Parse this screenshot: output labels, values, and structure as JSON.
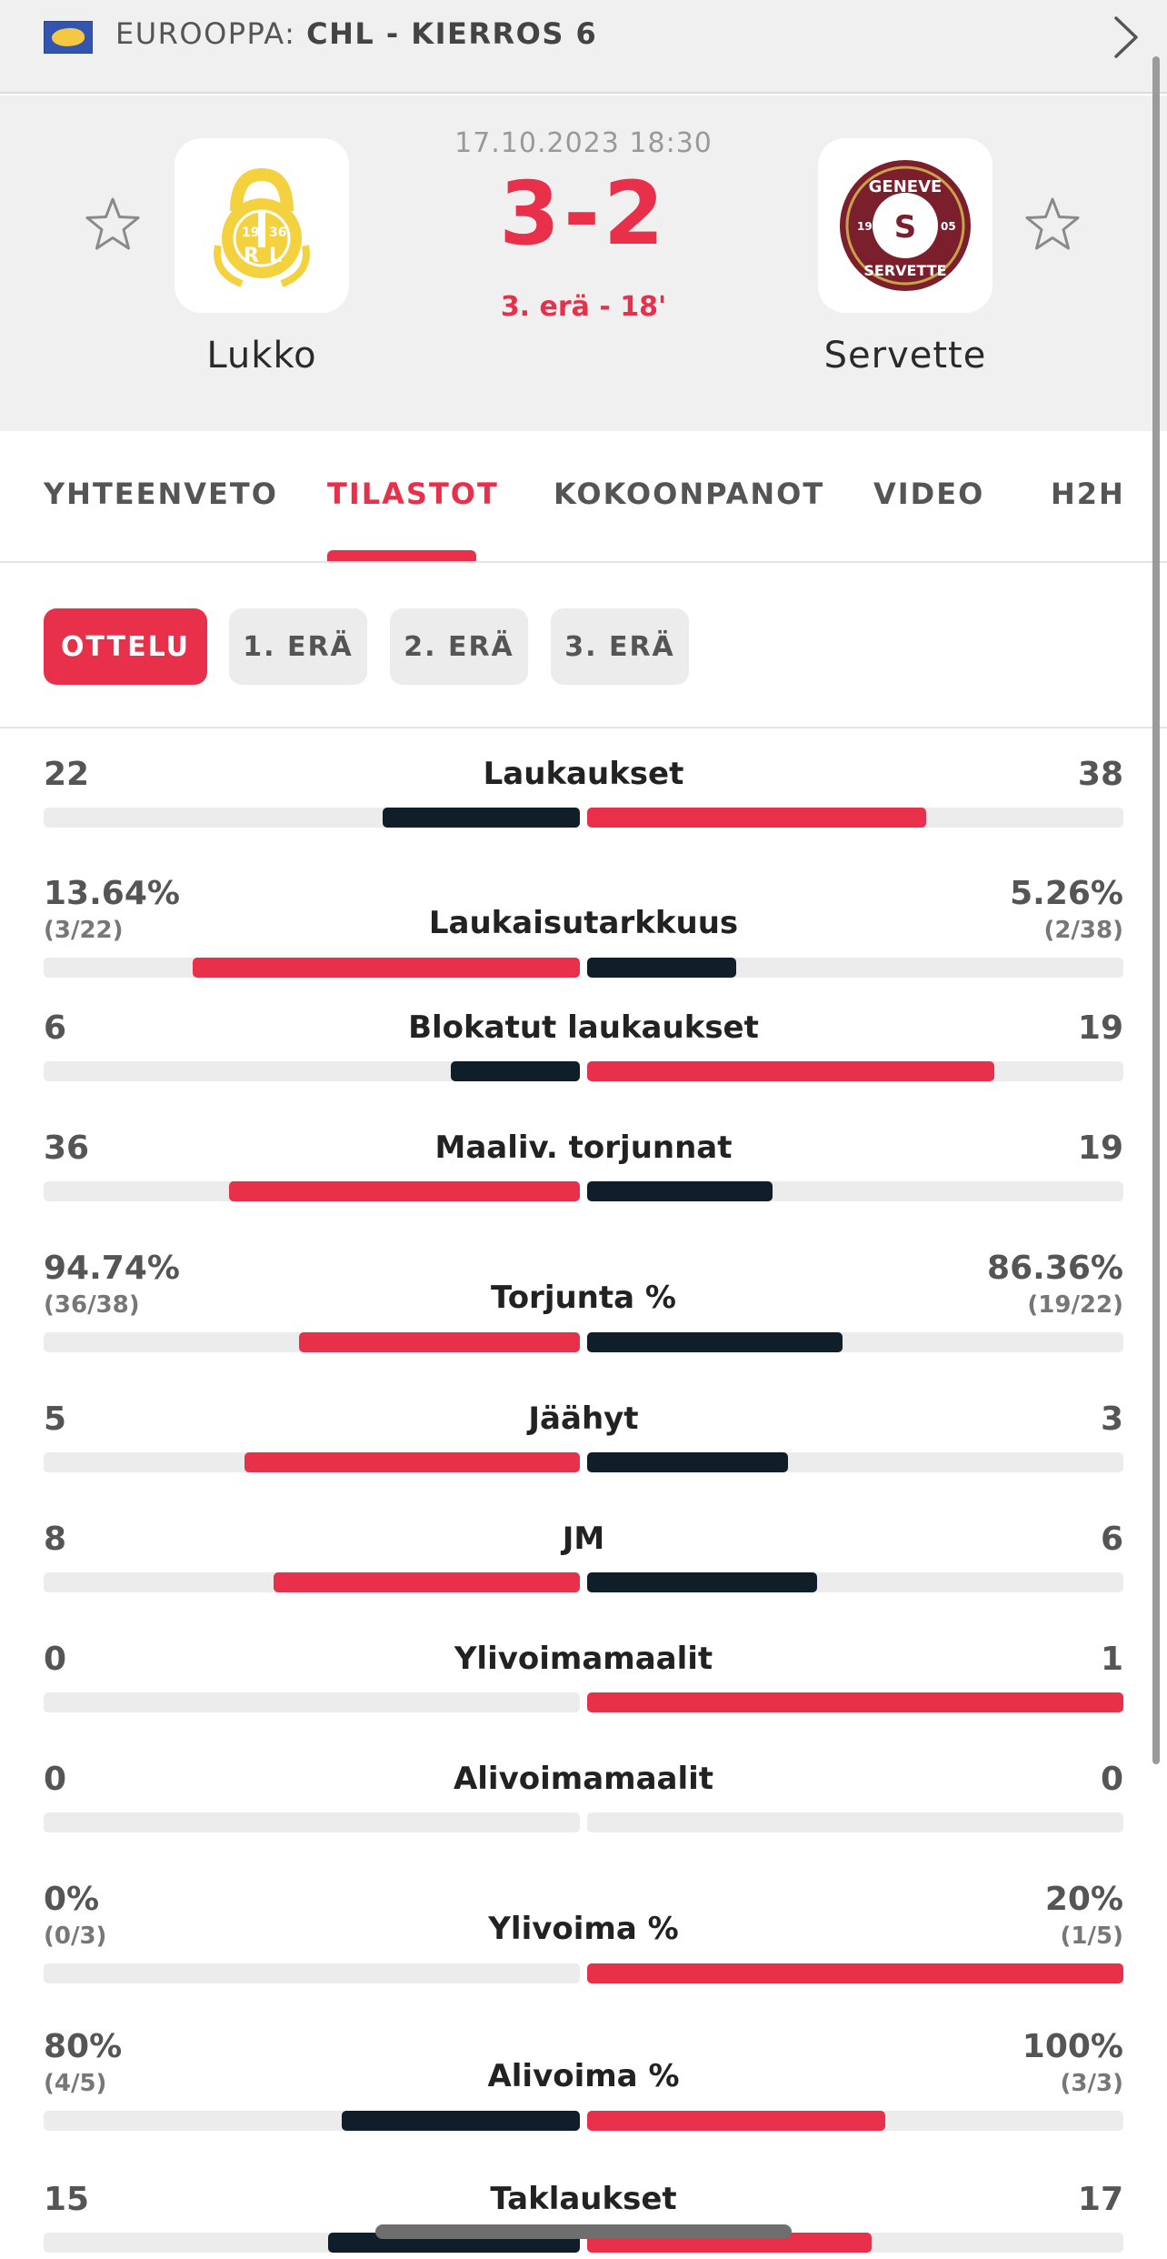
{
  "competition": {
    "flag_icon": "europe-flag-icon",
    "region": "EUROOPPA:",
    "name": "CHL - KIERROS 6"
  },
  "match": {
    "date_time": "17.10.2023 18:30",
    "score": "3-2",
    "status": "3. erä - 18'",
    "home": {
      "name": "Lukko",
      "logo_icon": "lukko-logo-icon"
    },
    "away": {
      "name": "Servette",
      "logo_icon": "servette-logo-icon"
    }
  },
  "tabs": [
    {
      "label": "YHTEENVETO",
      "active": false
    },
    {
      "label": "TILASTOT",
      "active": true
    },
    {
      "label": "KOKOONPANOT",
      "active": false
    },
    {
      "label": "VIDEO",
      "active": false
    },
    {
      "label": "H2H",
      "active": false
    }
  ],
  "periods": [
    {
      "label": "OTTELU",
      "active": true
    },
    {
      "label": "1. ERÄ",
      "active": false
    },
    {
      "label": "2. ERÄ",
      "active": false
    },
    {
      "label": "3. ERÄ",
      "active": false
    }
  ],
  "colors": {
    "accent": "#e8304b",
    "dark": "#0f1e29",
    "track": "#ececec"
  },
  "stats": [
    {
      "label": "Laukaukset",
      "home": "22",
      "away": "38",
      "home_sub": "",
      "away_sub": "",
      "home_fraction": 0.367,
      "away_fraction": 0.633,
      "home_color": "#0f1e29",
      "away_color": "#e8304b"
    },
    {
      "label": "Laukaisutarkkuus",
      "home": "13.64%",
      "away": "5.26%",
      "home_sub": "(3/22)",
      "away_sub": "(2/38)",
      "home_fraction": 0.722,
      "away_fraction": 0.278,
      "home_color": "#e8304b",
      "away_color": "#0f1e29"
    },
    {
      "label": "Blokatut laukaukset",
      "home": "6",
      "away": "19",
      "home_sub": "",
      "away_sub": "",
      "home_fraction": 0.24,
      "away_fraction": 0.76,
      "home_color": "#0f1e29",
      "away_color": "#e8304b"
    },
    {
      "label": "Maaliv. torjunnat",
      "home": "36",
      "away": "19",
      "home_sub": "",
      "away_sub": "",
      "home_fraction": 0.655,
      "away_fraction": 0.345,
      "home_color": "#e8304b",
      "away_color": "#0f1e29"
    },
    {
      "label": "Torjunta %",
      "home": "94.74%",
      "away": "86.36%",
      "home_sub": "(36/38)",
      "away_sub": "(19/22)",
      "home_fraction": 0.523,
      "away_fraction": 0.477,
      "home_color": "#e8304b",
      "away_color": "#0f1e29"
    },
    {
      "label": "Jäähyt",
      "home": "5",
      "away": "3",
      "home_sub": "",
      "away_sub": "",
      "home_fraction": 0.625,
      "away_fraction": 0.375,
      "home_color": "#e8304b",
      "away_color": "#0f1e29"
    },
    {
      "label": "JM",
      "home": "8",
      "away": "6",
      "home_sub": "",
      "away_sub": "",
      "home_fraction": 0.571,
      "away_fraction": 0.429,
      "home_color": "#e8304b",
      "away_color": "#0f1e29"
    },
    {
      "label": "Ylivoimamaalit",
      "home": "0",
      "away": "1",
      "home_sub": "",
      "away_sub": "",
      "home_fraction": 0,
      "away_fraction": 1,
      "home_color": "#0f1e29",
      "away_color": "#e8304b"
    },
    {
      "label": "Alivoimamaalit",
      "home": "0",
      "away": "0",
      "home_sub": "",
      "away_sub": "",
      "home_fraction": 0,
      "away_fraction": 0,
      "home_color": "#0f1e29",
      "away_color": "#e8304b"
    },
    {
      "label": "Ylivoima %",
      "home": "0%",
      "away": "20%",
      "home_sub": "(0/3)",
      "away_sub": "(1/5)",
      "home_fraction": 0,
      "away_fraction": 1,
      "home_color": "#0f1e29",
      "away_color": "#e8304b"
    },
    {
      "label": "Alivoima %",
      "home": "80%",
      "away": "100%",
      "home_sub": "(4/5)",
      "away_sub": "(3/3)",
      "home_fraction": 0.444,
      "away_fraction": 0.556,
      "home_color": "#0f1e29",
      "away_color": "#e8304b"
    },
    {
      "label": "Taklaukset",
      "home": "15",
      "away": "17",
      "home_sub": "",
      "away_sub": "",
      "home_fraction": 0.469,
      "away_fraction": 0.531,
      "home_color": "#0f1e29",
      "away_color": "#e8304b"
    }
  ]
}
